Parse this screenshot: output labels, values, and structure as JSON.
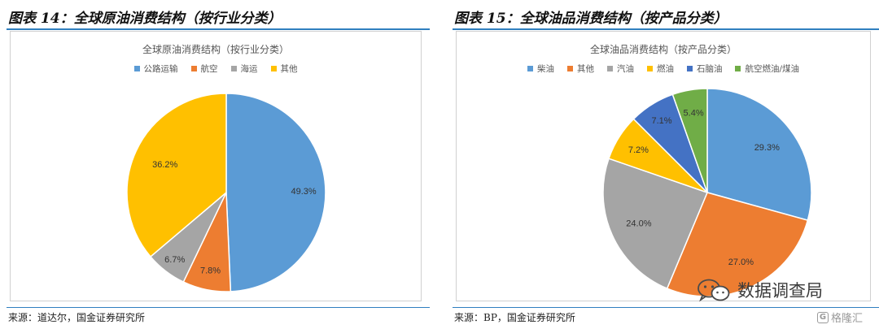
{
  "figures": [
    {
      "title": "图表 14：全球原油消费结构（按行业分类）",
      "source": "来源：道达尔，国金证券研究所",
      "chart_data": {
        "type": "pie",
        "title": "全球原油消费结构（按行业分类）",
        "legend_position": "top",
        "start_angle_deg": 0,
        "direction": "clockwise",
        "categories": [
          "公路运输",
          "航空",
          "海运",
          "其他"
        ],
        "values": [
          49.3,
          7.8,
          6.7,
          36.2
        ],
        "labels": [
          "49.3%",
          "7.8%",
          "6.7%",
          "36.2%"
        ],
        "colors": [
          "#5b9bd5",
          "#ed7d31",
          "#a5a5a5",
          "#ffc000"
        ]
      }
    },
    {
      "title": "图表 15：全球油品消费结构（按产品分类）",
      "source": "来源：BP，国金证券研究所",
      "chart_data": {
        "type": "pie",
        "title": "全球油品消费结构（按产品分类）",
        "legend_position": "top",
        "start_angle_deg": 0,
        "direction": "clockwise",
        "categories": [
          "柴油",
          "其他",
          "汽油",
          "燃油",
          "石脑油",
          "航空燃油/煤油"
        ],
        "values": [
          29.3,
          27.0,
          24.0,
          7.2,
          7.1,
          5.4
        ],
        "labels": [
          "29.3%",
          "27.0%",
          "24.0%",
          "7.2%",
          "7.1%",
          "5.4%"
        ],
        "colors": [
          "#5b9bd5",
          "#ed7d31",
          "#a5a5a5",
          "#ffc000",
          "#4472c4",
          "#70ad47"
        ]
      }
    }
  ],
  "watermark": {
    "text": "数据调查局",
    "icon": "wechat-icon",
    "secondary_text": "格隆汇",
    "secondary_icon": "g-logo-icon"
  }
}
